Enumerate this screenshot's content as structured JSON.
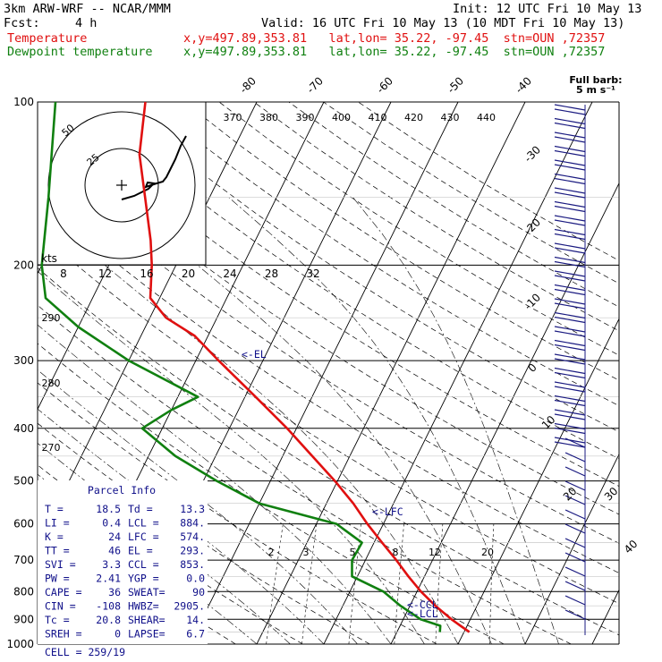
{
  "header": {
    "model": "3km ARW-WRF -- NCAR/MMM",
    "init": "Init: 12 UTC Fri 10 May 13",
    "fcst_label": "Fcst:",
    "fcst_value": "4 h",
    "valid": "Valid: 16 UTC Fri 10 May 13 (10 MDT Fri 10 May 13)",
    "temp_label": "Temperature",
    "temp_info": "x,y=497.89,353.81   lat,lon= 35.22, -97.45  stn=OUN ,72357",
    "dew_label": "Dewpoint temperature",
    "dew_info": "x,y=497.89,353.81   lat,lon= 35.22, -97.45  stn=OUN ,72357"
  },
  "chart_data": {
    "type": "line",
    "subtype": "skew-T log-p sounding",
    "pressure_levels": [
      100,
      200,
      300,
      400,
      500,
      600,
      700,
      800,
      900,
      1000
    ],
    "isotherm_labels": [
      "-80",
      "-70",
      "-60",
      "-50",
      "-40",
      "-30",
      "-20",
      "-10",
      "0",
      "10",
      "20",
      "30",
      "40"
    ],
    "theta_labels": [
      "370",
      "380",
      "390",
      "400",
      "410",
      "420",
      "430",
      "440"
    ],
    "theta_low_labels": [
      "290",
      "280",
      "270"
    ],
    "mixing_ratio_labels": [
      "2",
      "3",
      "5",
      "8",
      "12",
      "20"
    ],
    "hodograph": {
      "unit_label": "kts",
      "ring_labels": [
        "50",
        "25"
      ],
      "speed_labels": [
        "8",
        "12",
        "16",
        "20",
        "24",
        "28",
        "32"
      ]
    },
    "wind_barb_title": "Full barb:",
    "wind_barb_unit": "5 m s⁻¹",
    "markers": {
      "el": "<-EL",
      "lfc": "<-LFC",
      "ccl": "<-CCL",
      "lcl": "<-LCL"
    },
    "series": [
      {
        "name": "Temperature",
        "color": "#e01010",
        "points": [
          [
            950,
            20.8
          ],
          [
            925,
            19.0
          ],
          [
            900,
            17.2
          ],
          [
            850,
            13.8
          ],
          [
            800,
            10.6
          ],
          [
            750,
            7.6
          ],
          [
            700,
            4.6
          ],
          [
            650,
            1.2
          ],
          [
            600,
            -2.4
          ],
          [
            550,
            -6.0
          ],
          [
            500,
            -10.4
          ],
          [
            450,
            -15.6
          ],
          [
            400,
            -21.4
          ],
          [
            350,
            -28.4
          ],
          [
            300,
            -36.6
          ],
          [
            270,
            -42.0
          ],
          [
            250,
            -47.6
          ],
          [
            230,
            -51.4
          ],
          [
            200,
            -53.6
          ],
          [
            180,
            -55.6
          ],
          [
            150,
            -59.6
          ],
          [
            125,
            -63.6
          ],
          [
            100,
            -66.6
          ]
        ]
      },
      {
        "name": "Dewpoint temperature",
        "color": "#108010",
        "points": [
          [
            950,
            16.4
          ],
          [
            925,
            16.0
          ],
          [
            900,
            12.6
          ],
          [
            850,
            8.6
          ],
          [
            800,
            5.0
          ],
          [
            750,
            -0.8
          ],
          [
            700,
            -2.0
          ],
          [
            650,
            -1.8
          ],
          [
            600,
            -7.0
          ],
          [
            550,
            -20.0
          ],
          [
            500,
            -28.0
          ],
          [
            450,
            -36.0
          ],
          [
            400,
            -43.0
          ],
          [
            370,
            -40.0
          ],
          [
            350,
            -37.0
          ],
          [
            300,
            -50.0
          ],
          [
            260,
            -60.0
          ],
          [
            230,
            -67.0
          ],
          [
            200,
            -70.0
          ],
          [
            150,
            -74.0
          ],
          [
            100,
            -80.0
          ]
        ]
      }
    ]
  },
  "parcel_info": {
    "title": "Parcel Info",
    "rows": [
      [
        "T  =",
        "18.5",
        "Td =",
        "13.3"
      ],
      [
        "LI =",
        "0.4",
        "LCL =",
        "884."
      ],
      [
        "K  =",
        "24",
        "LFC =",
        "574."
      ],
      [
        "TT =",
        "46",
        "EL  =",
        "293."
      ],
      [
        "SVI =",
        "3.3",
        "CCL =",
        "853."
      ],
      [
        "PW =",
        "2.41",
        "YGP =",
        "0.0"
      ],
      [
        "CAPE =",
        "36",
        "SWEAT=",
        "90"
      ],
      [
        "CIN =",
        "-108",
        "HWBZ=",
        "2905."
      ],
      [
        "Tc =",
        "20.8",
        "SHEAR=",
        "14."
      ],
      [
        "SREH =",
        "0",
        "LAPSE=",
        "6.7"
      ]
    ],
    "cell": "CELL = 259/19"
  }
}
